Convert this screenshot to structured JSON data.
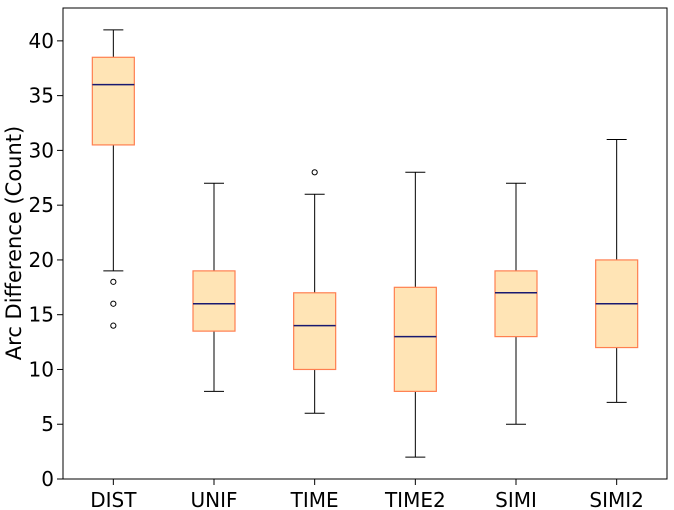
{
  "chart_data": {
    "type": "box",
    "ylabel": "Arc Difference (Count)",
    "xlabel": "",
    "ylim": [
      0,
      43
    ],
    "yticks": [
      0,
      5,
      10,
      15,
      20,
      25,
      30,
      35,
      40
    ],
    "categories": [
      "DIST",
      "UNIF",
      "TIME",
      "TIME2",
      "SIMI",
      "SIMI2"
    ],
    "boxes": [
      {
        "label": "DIST",
        "whisker_low": 19,
        "q1": 30.5,
        "median": 36,
        "q3": 38.5,
        "whisker_high": 41,
        "outliers": [
          18,
          16,
          14
        ]
      },
      {
        "label": "UNIF",
        "whisker_low": 8,
        "q1": 13.5,
        "median": 16,
        "q3": 19,
        "whisker_high": 27,
        "outliers": []
      },
      {
        "label": "TIME",
        "whisker_low": 6,
        "q1": 10,
        "median": 14,
        "q3": 17,
        "whisker_high": 26,
        "outliers": [
          28
        ]
      },
      {
        "label": "TIME2",
        "whisker_low": 2,
        "q1": 8,
        "median": 13,
        "q3": 17.5,
        "whisker_high": 28,
        "outliers": []
      },
      {
        "label": "SIMI",
        "whisker_low": 5,
        "q1": 13,
        "median": 17,
        "q3": 19,
        "whisker_high": 27,
        "outliers": []
      },
      {
        "label": "SIMI2",
        "whisker_low": 7,
        "q1": 12,
        "median": 16,
        "q3": 20,
        "whisker_high": 31,
        "outliers": []
      }
    ],
    "grid": false,
    "colors": {
      "box_fill": "#ffe4b5",
      "box_edge": "#ff7f50",
      "median": "#191970",
      "whisker": "#000000",
      "outlier_edge": "#000000",
      "axes": "#000000"
    }
  }
}
